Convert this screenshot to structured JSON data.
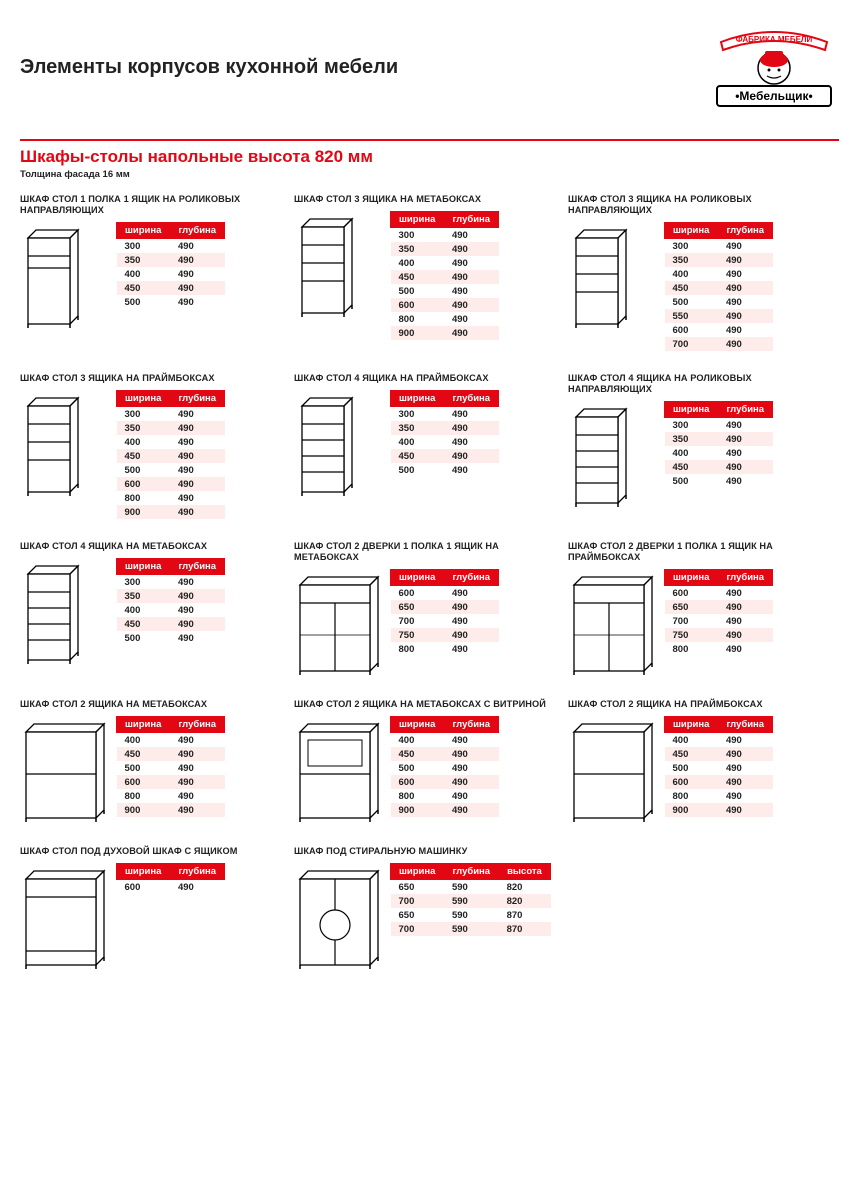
{
  "page": {
    "title": "Элементы корпусов кухонной мебели",
    "logo_upper": "ФАБРИКА МЕБЕЛИ",
    "logo_brand": "•Мебельщик•"
  },
  "section": {
    "title": "Шкафы-столы напольные высота 820 мм",
    "note": "Толщина фасада 16 мм",
    "accent_color": "#e30613",
    "alt_row_bg": "#fdecea",
    "th_width_label": "ширина",
    "th_depth_label": "глубина",
    "th_height_label": "высота"
  },
  "items": [
    {
      "title": "ШКАФ СТОЛ 1 ПОЛКА 1 ЯЩИК НА РОЛИКОВЫХ НАПРАВЛЯЮЩИХ",
      "shape": "narrow1",
      "cols": [
        "w",
        "d"
      ],
      "rows": [
        [
          "300",
          "490"
        ],
        [
          "350",
          "490"
        ],
        [
          "400",
          "490"
        ],
        [
          "450",
          "490"
        ],
        [
          "500",
          "490"
        ]
      ]
    },
    {
      "title": "ШКАФ СТОЛ 3  ЯЩИКА НА МЕТАБОКСАХ",
      "shape": "narrow3",
      "cols": [
        "w",
        "d"
      ],
      "rows": [
        [
          "300",
          "490"
        ],
        [
          "350",
          "490"
        ],
        [
          "400",
          "490"
        ],
        [
          "450",
          "490"
        ],
        [
          "500",
          "490"
        ],
        [
          "600",
          "490"
        ],
        [
          "800",
          "490"
        ],
        [
          "900",
          "490"
        ]
      ]
    },
    {
      "title": "ШКАФ СТОЛ 3 ЯЩИКА НА РОЛИКОВЫХ НАПРАВЛЯЮЩИХ",
      "shape": "narrow3",
      "cols": [
        "w",
        "d"
      ],
      "rows": [
        [
          "300",
          "490"
        ],
        [
          "350",
          "490"
        ],
        [
          "400",
          "490"
        ],
        [
          "450",
          "490"
        ],
        [
          "500",
          "490"
        ],
        [
          "550",
          "490"
        ],
        [
          "600",
          "490"
        ],
        [
          "700",
          "490"
        ]
      ]
    },
    {
      "title": "ШКАФ СТОЛ 3 ЯЩИКА НА ПРАЙМБОКСАХ",
      "shape": "narrow3",
      "cols": [
        "w",
        "d"
      ],
      "rows": [
        [
          "300",
          "490"
        ],
        [
          "350",
          "490"
        ],
        [
          "400",
          "490"
        ],
        [
          "450",
          "490"
        ],
        [
          "500",
          "490"
        ],
        [
          "600",
          "490"
        ],
        [
          "800",
          "490"
        ],
        [
          "900",
          "490"
        ]
      ]
    },
    {
      "title": "ШКАФ СТОЛ 4 ЯЩИКА НА ПРАЙМБОКСАХ",
      "shape": "narrow4",
      "cols": [
        "w",
        "d"
      ],
      "rows": [
        [
          "300",
          "490"
        ],
        [
          "350",
          "490"
        ],
        [
          "400",
          "490"
        ],
        [
          "450",
          "490"
        ],
        [
          "500",
          "490"
        ]
      ]
    },
    {
      "title": "ШКАФ СТОЛ 4 ЯЩИКА НА РОЛИКОВЫХ НАПРАВЛЯЮЩИХ",
      "shape": "narrow4",
      "cols": [
        "w",
        "d"
      ],
      "rows": [
        [
          "300",
          "490"
        ],
        [
          "350",
          "490"
        ],
        [
          "400",
          "490"
        ],
        [
          "450",
          "490"
        ],
        [
          "500",
          "490"
        ]
      ]
    },
    {
      "title": "ШКАФ СТОЛ 4  ЯЩИКА НА МЕТАБОКСАХ",
      "shape": "narrow4",
      "cols": [
        "w",
        "d"
      ],
      "rows": [
        [
          "300",
          "490"
        ],
        [
          "350",
          "490"
        ],
        [
          "400",
          "490"
        ],
        [
          "450",
          "490"
        ],
        [
          "500",
          "490"
        ]
      ]
    },
    {
      "title": "ШКАФ СТОЛ 2 ДВЕРКИ 1 ПОЛКА 1 ЯЩИК НА МЕТАБОКСАХ",
      "shape": "wide2d1",
      "cols": [
        "w",
        "d"
      ],
      "rows": [
        [
          "600",
          "490"
        ],
        [
          "650",
          "490"
        ],
        [
          "700",
          "490"
        ],
        [
          "750",
          "490"
        ],
        [
          "800",
          "490"
        ]
      ]
    },
    {
      "title": "ШКАФ СТОЛ 2 ДВЕРКИ 1 ПОЛКА 1 ЯЩИК НА ПРАЙМБОКСАХ",
      "shape": "wide2d1",
      "cols": [
        "w",
        "d"
      ],
      "rows": [
        [
          "600",
          "490"
        ],
        [
          "650",
          "490"
        ],
        [
          "700",
          "490"
        ],
        [
          "750",
          "490"
        ],
        [
          "800",
          "490"
        ]
      ]
    },
    {
      "title": "ШКАФ СТОЛ 2 ЯЩИКА  НА МЕТАБОКСАХ",
      "shape": "wide2",
      "cols": [
        "w",
        "d"
      ],
      "rows": [
        [
          "400",
          "490"
        ],
        [
          "450",
          "490"
        ],
        [
          "500",
          "490"
        ],
        [
          "600",
          "490"
        ],
        [
          "800",
          "490"
        ],
        [
          "900",
          "490"
        ]
      ]
    },
    {
      "title": "ШКАФ СТОЛ 2 ЯЩИКА НА МЕТАБОКСАХ С ВИТРИНОЙ",
      "shape": "wide2v",
      "cols": [
        "w",
        "d"
      ],
      "rows": [
        [
          "400",
          "490"
        ],
        [
          "450",
          "490"
        ],
        [
          "500",
          "490"
        ],
        [
          "600",
          "490"
        ],
        [
          "800",
          "490"
        ],
        [
          "900",
          "490"
        ]
      ]
    },
    {
      "title": "ШКАФ СТОЛ 2 ЯЩИКА  НА ПРАЙМБОКСАХ",
      "shape": "wide2",
      "cols": [
        "w",
        "d"
      ],
      "rows": [
        [
          "400",
          "490"
        ],
        [
          "450",
          "490"
        ],
        [
          "500",
          "490"
        ],
        [
          "600",
          "490"
        ],
        [
          "800",
          "490"
        ],
        [
          "900",
          "490"
        ]
      ]
    },
    {
      "title": "ШКАФ СТОЛ под духовой шкаф с ящиком",
      "shape": "oven",
      "cols": [
        "w",
        "d"
      ],
      "rows": [
        [
          "600",
          "490"
        ]
      ]
    },
    {
      "title": "ШКАФ под стиральную машинку",
      "shape": "washer",
      "cols": [
        "w",
        "d",
        "h"
      ],
      "rows": [
        [
          "650",
          "590",
          "820"
        ],
        [
          "700",
          "590",
          "820"
        ],
        [
          "650",
          "590",
          "870"
        ],
        [
          "700",
          "590",
          "870"
        ]
      ]
    }
  ]
}
